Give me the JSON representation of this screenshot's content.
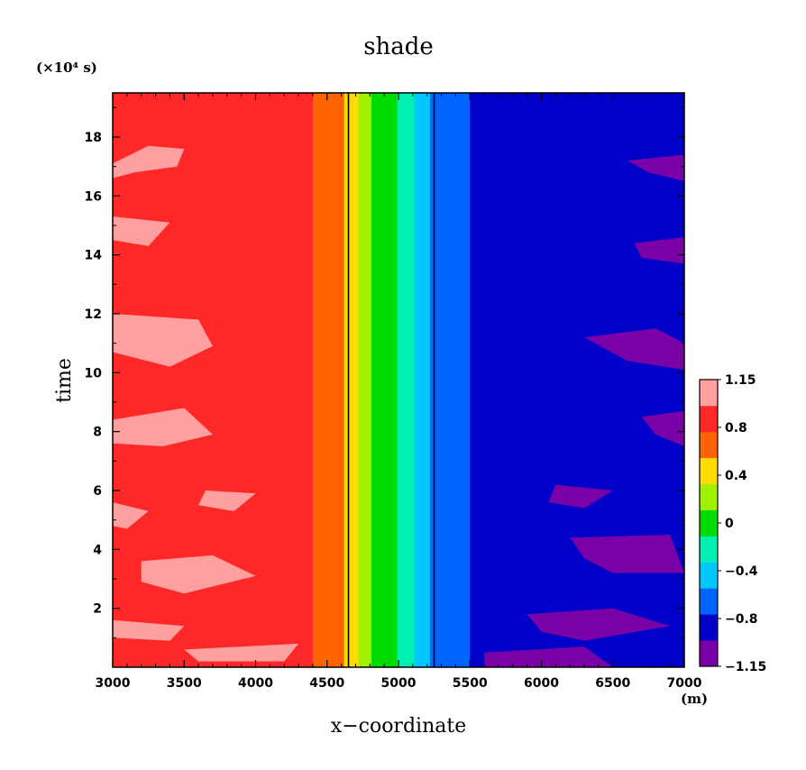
{
  "chart_data": {
    "type": "heatmap",
    "title": "shade",
    "xlabel": "x−coordinate",
    "ylabel": "time",
    "x_unit": "(m)",
    "y_unit": "(×10⁴ s)",
    "xlim": [
      3000,
      7000
    ],
    "ylim": [
      0,
      19.5
    ],
    "x_ticks": [
      3000,
      3500,
      4000,
      4500,
      5000,
      5500,
      6000,
      6500,
      7000
    ],
    "x_tick_labels": [
      "3000",
      "3500",
      "4000",
      "4500",
      "5000",
      "5500",
      "6000",
      "6500",
      "7000"
    ],
    "y_ticks": [
      2,
      4,
      6,
      8,
      10,
      12,
      14,
      16,
      18
    ],
    "y_tick_labels": [
      "2",
      "4",
      "6",
      "8",
      "10",
      "12",
      "14",
      "16",
      "18"
    ],
    "vertical_lines_x": [
      4650,
      5250
    ],
    "colorbar": {
      "levels": [
        -1.15,
        -0.8,
        -0.6,
        -0.4,
        -0.2,
        0,
        0.2,
        0.4,
        0.6,
        0.8,
        1.0,
        1.15
      ],
      "colors": [
        "#7a00a8",
        "#0000c8",
        "#0064ff",
        "#00c8ff",
        "#00f0b4",
        "#00dc00",
        "#a0f000",
        "#ffdc00",
        "#ff6400",
        "#ff2828",
        "#ffa0a0"
      ],
      "tick_labels": [
        "1.15",
        "0.8",
        "0.4",
        "0",
        "−0.4",
        "−0.8",
        "−1.15"
      ]
    },
    "bands": [
      {
        "from": 3000,
        "to": 4400,
        "color": "#ff2828"
      },
      {
        "from": 4400,
        "to": 4620,
        "color": "#ff6400"
      },
      {
        "from": 4620,
        "to": 4720,
        "color": "#ffdc00"
      },
      {
        "from": 4720,
        "to": 4810,
        "color": "#a0f000"
      },
      {
        "from": 4810,
        "to": 4990,
        "color": "#00dc00"
      },
      {
        "from": 4990,
        "to": 5110,
        "color": "#00f0b4"
      },
      {
        "from": 5110,
        "to": 5220,
        "color": "#00c8ff"
      },
      {
        "from": 5220,
        "to": 5500,
        "color": "#0064ff"
      },
      {
        "from": 5500,
        "to": 7000,
        "color": "#0000c8"
      }
    ],
    "patches": [
      {
        "color": "#ffa0a0",
        "points": [
          [
            3000,
            17.1
          ],
          [
            3250,
            17.7
          ],
          [
            3500,
            17.6
          ],
          [
            3450,
            17.0
          ],
          [
            3150,
            16.8
          ],
          [
            3000,
            16.6
          ]
        ]
      },
      {
        "color": "#ffa0a0",
        "points": [
          [
            3000,
            15.3
          ],
          [
            3400,
            15.1
          ],
          [
            3250,
            14.3
          ],
          [
            3000,
            14.5
          ]
        ]
      },
      {
        "color": "#ffa0a0",
        "points": [
          [
            3000,
            12.0
          ],
          [
            3600,
            11.8
          ],
          [
            3700,
            10.9
          ],
          [
            3400,
            10.2
          ],
          [
            3000,
            10.7
          ]
        ]
      },
      {
        "color": "#ffa0a0",
        "points": [
          [
            3000,
            8.4
          ],
          [
            3500,
            8.8
          ],
          [
            3700,
            7.9
          ],
          [
            3350,
            7.5
          ],
          [
            3000,
            7.6
          ]
        ]
      },
      {
        "color": "#ffa0a0",
        "points": [
          [
            3000,
            5.6
          ],
          [
            3250,
            5.3
          ],
          [
            3100,
            4.7
          ],
          [
            3000,
            4.8
          ]
        ]
      },
      {
        "color": "#ffa0a0",
        "points": [
          [
            3650,
            6.0
          ],
          [
            4000,
            5.9
          ],
          [
            3850,
            5.3
          ],
          [
            3600,
            5.5
          ]
        ]
      },
      {
        "color": "#ffa0a0",
        "points": [
          [
            3200,
            3.6
          ],
          [
            3700,
            3.8
          ],
          [
            4000,
            3.1
          ],
          [
            3500,
            2.5
          ],
          [
            3200,
            2.9
          ]
        ]
      },
      {
        "color": "#ffa0a0",
        "points": [
          [
            3000,
            1.6
          ],
          [
            3500,
            1.4
          ],
          [
            3400,
            0.9
          ],
          [
            3000,
            1.0
          ]
        ]
      },
      {
        "color": "#ffa0a0",
        "points": [
          [
            3500,
            0.6
          ],
          [
            4300,
            0.8
          ],
          [
            4200,
            0.2
          ],
          [
            3600,
            0.2
          ]
        ]
      },
      {
        "color": "#7a00a8",
        "points": [
          [
            6600,
            17.2
          ],
          [
            7000,
            17.4
          ],
          [
            7000,
            16.5
          ],
          [
            6750,
            16.8
          ]
        ]
      },
      {
        "color": "#7a00a8",
        "points": [
          [
            6650,
            14.4
          ],
          [
            7000,
            14.6
          ],
          [
            7000,
            13.7
          ],
          [
            6700,
            13.9
          ]
        ]
      },
      {
        "color": "#7a00a8",
        "points": [
          [
            6300,
            11.2
          ],
          [
            6800,
            11.5
          ],
          [
            7000,
            11.0
          ],
          [
            7000,
            10.1
          ],
          [
            6600,
            10.4
          ]
        ]
      },
      {
        "color": "#7a00a8",
        "points": [
          [
            6700,
            8.5
          ],
          [
            7000,
            8.7
          ],
          [
            7000,
            7.5
          ],
          [
            6800,
            7.9
          ]
        ]
      },
      {
        "color": "#7a00a8",
        "points": [
          [
            6100,
            6.2
          ],
          [
            6500,
            6.0
          ],
          [
            6300,
            5.4
          ],
          [
            6050,
            5.6
          ]
        ]
      },
      {
        "color": "#7a00a8",
        "points": [
          [
            6200,
            4.4
          ],
          [
            6900,
            4.5
          ],
          [
            7000,
            3.2
          ],
          [
            6500,
            3.2
          ],
          [
            6300,
            3.7
          ]
        ]
      },
      {
        "color": "#7a00a8",
        "points": [
          [
            5900,
            1.8
          ],
          [
            6500,
            2.0
          ],
          [
            6900,
            1.4
          ],
          [
            6300,
            0.9
          ],
          [
            6000,
            1.2
          ]
        ]
      },
      {
        "color": "#7a00a8",
        "points": [
          [
            5600,
            0.5
          ],
          [
            6300,
            0.7
          ],
          [
            6500,
            0.0
          ],
          [
            5600,
            0.0
          ]
        ]
      }
    ]
  }
}
